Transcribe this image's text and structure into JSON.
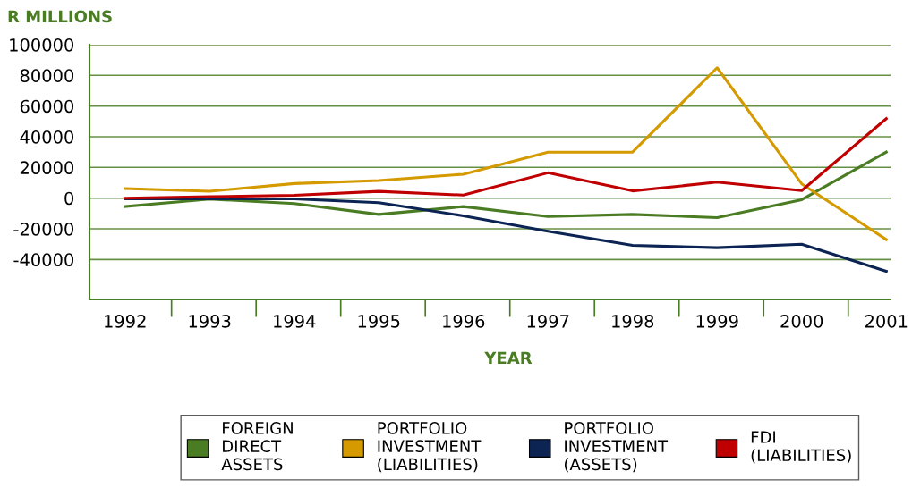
{
  "chart_data": {
    "type": "line",
    "ylabel": "R MILLIONS",
    "xlabel": "YEAR",
    "categories": [
      "1992",
      "1993",
      "1994",
      "1995",
      "1996",
      "1997",
      "1998",
      "1999",
      "2000",
      "2001"
    ],
    "series": [
      {
        "name": "FOREIGN DIRECT ASSETS",
        "color": "#4a7c23",
        "values": [
          -5500,
          -600,
          -3500,
          -10600,
          -5500,
          -12000,
          -10600,
          -12700,
          -1000,
          30000
        ]
      },
      {
        "name": "PORTFOLIO INVESTMENT (LIABILITIES)",
        "color": "#d49a00",
        "values": [
          6200,
          4500,
          9500,
          11500,
          15600,
          30000,
          30000,
          85000,
          9300,
          -27000
        ]
      },
      {
        "name": "PORTFOLIO INVESTMENT (ASSETS)",
        "color": "#0b2454",
        "values": [
          -500,
          -500,
          -500,
          -2900,
          -11500,
          -21600,
          -30800,
          -32300,
          -30000,
          -47700
        ]
      },
      {
        "name": "FDI (LIABILITIES)",
        "color": "#c00000",
        "values": [
          0,
          900,
          1800,
          4400,
          2000,
          16500,
          4700,
          10400,
          4900,
          51800
        ]
      }
    ],
    "ylim": [
      -66000,
      100000
    ],
    "yticks": [
      {
        "value": -40000,
        "label": "-40000"
      },
      {
        "value": -20000,
        "label": "-20000"
      },
      0,
      20000,
      40000,
      60000,
      80000,
      100000
    ],
    "grid": "y",
    "legend": "bottom",
    "marker": "none",
    "line_style": "solid"
  }
}
